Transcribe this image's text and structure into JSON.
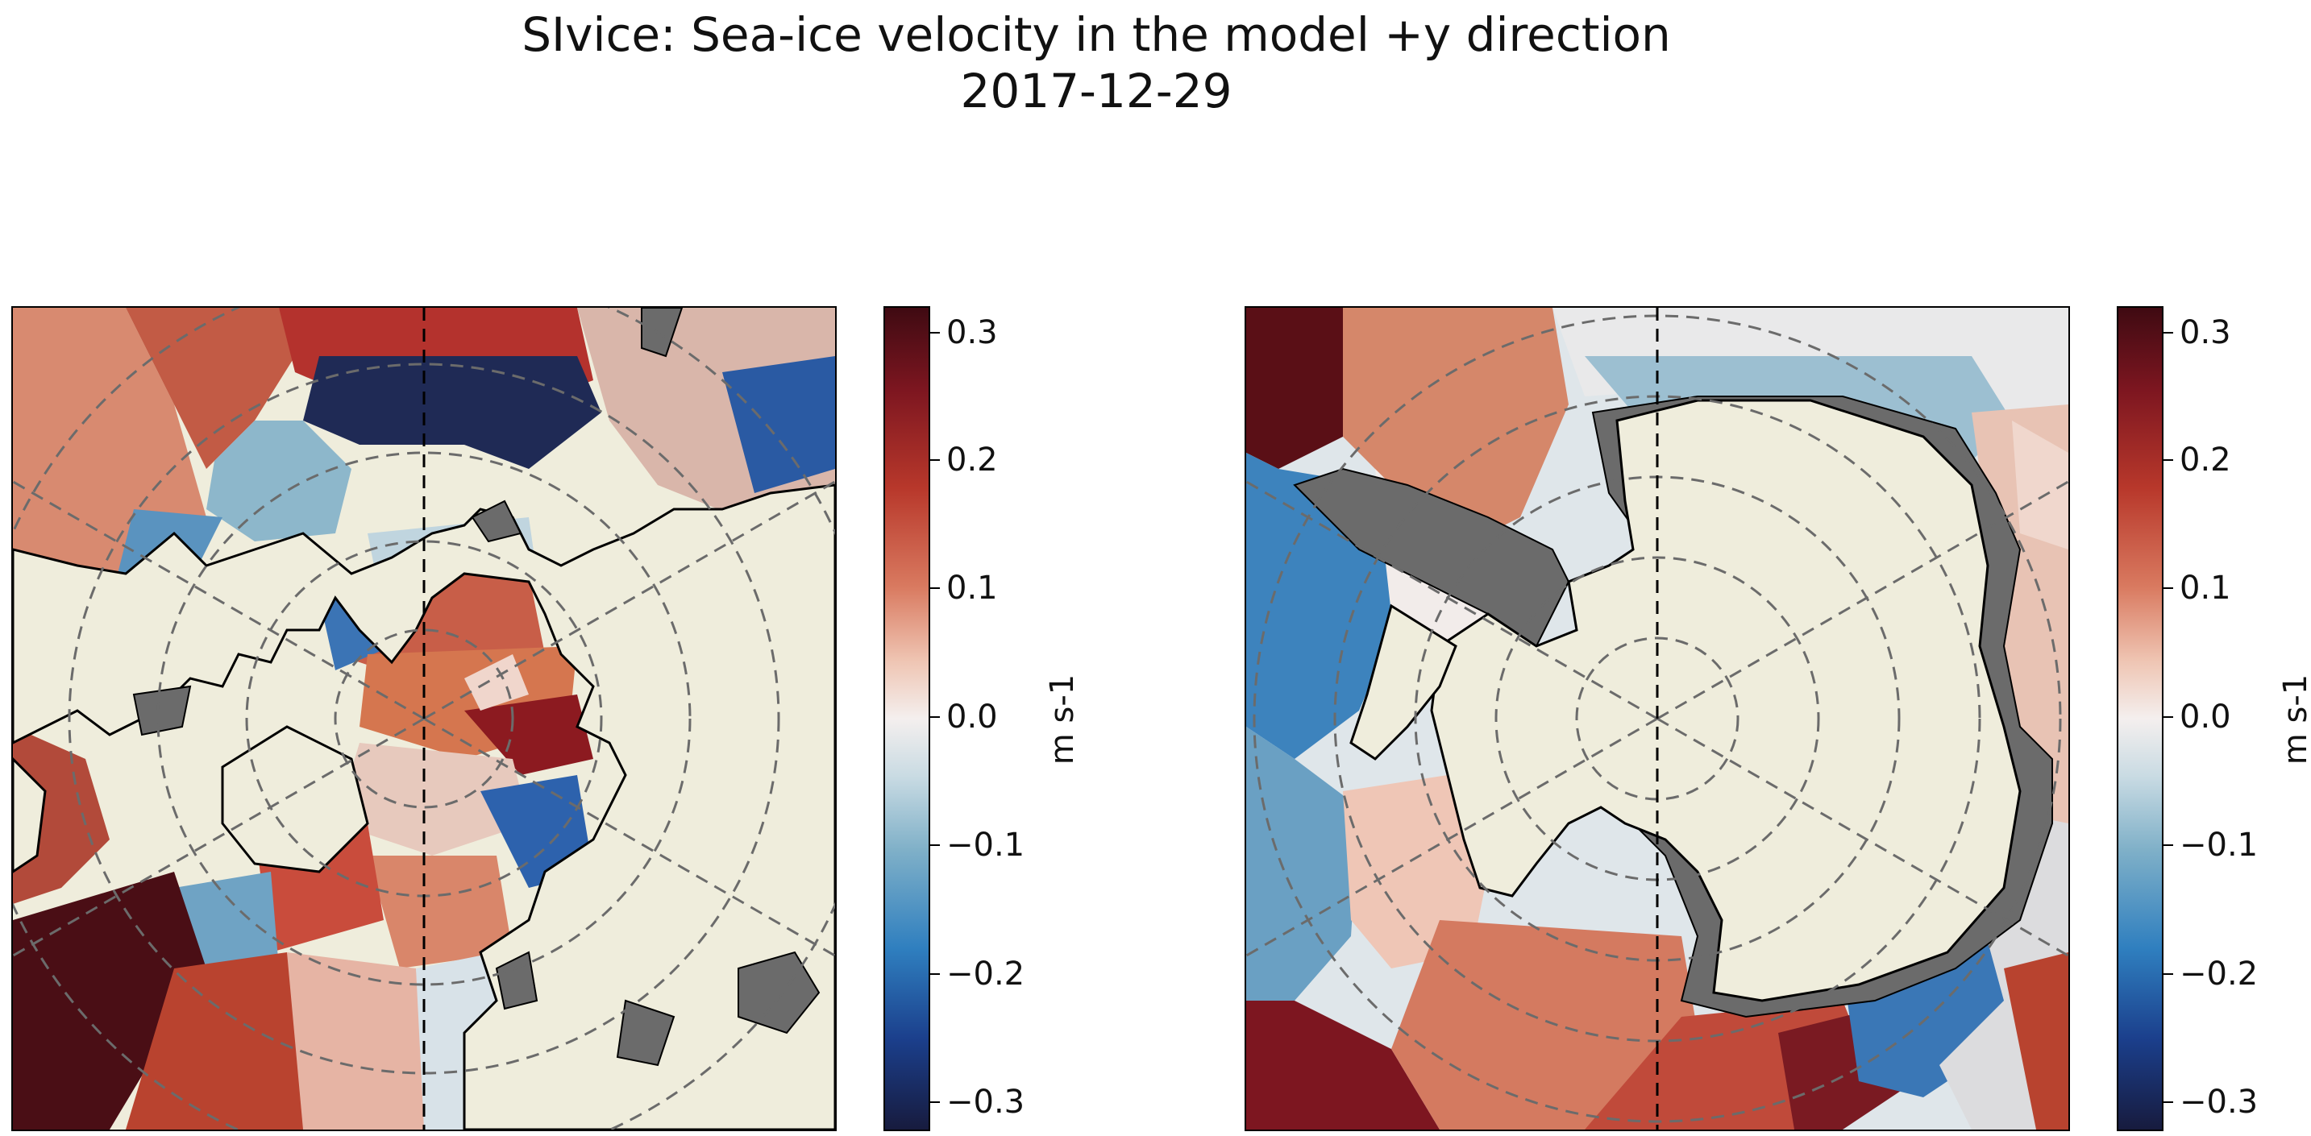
{
  "figure": {
    "title_line1": "SIvice: Sea-ice velocity in the model +y direction",
    "title_line2": "2017-12-29"
  },
  "colorbar": {
    "label": "m s-1",
    "ticks": [
      "0.3",
      "0.2",
      "0.1",
      "0.0",
      "−0.1",
      "−0.2",
      "−0.3"
    ],
    "range": [
      -0.32,
      0.32
    ],
    "colors": [
      "#3f0a12",
      "#b8382b",
      "#efc5b3",
      "#f4efee",
      "#7fb0c8",
      "#1b3f8c",
      "#171b3e"
    ]
  },
  "maps": [
    {
      "name": "north-polar-map",
      "projection": "north-polar-stereographic",
      "land_color": "#efeddc",
      "fill_value_color": "#6b6b6b"
    },
    {
      "name": "south-polar-map",
      "projection": "south-polar-stereographic",
      "land_color": "#efeddc",
      "fill_value_color": "#6b6b6b"
    }
  ]
}
